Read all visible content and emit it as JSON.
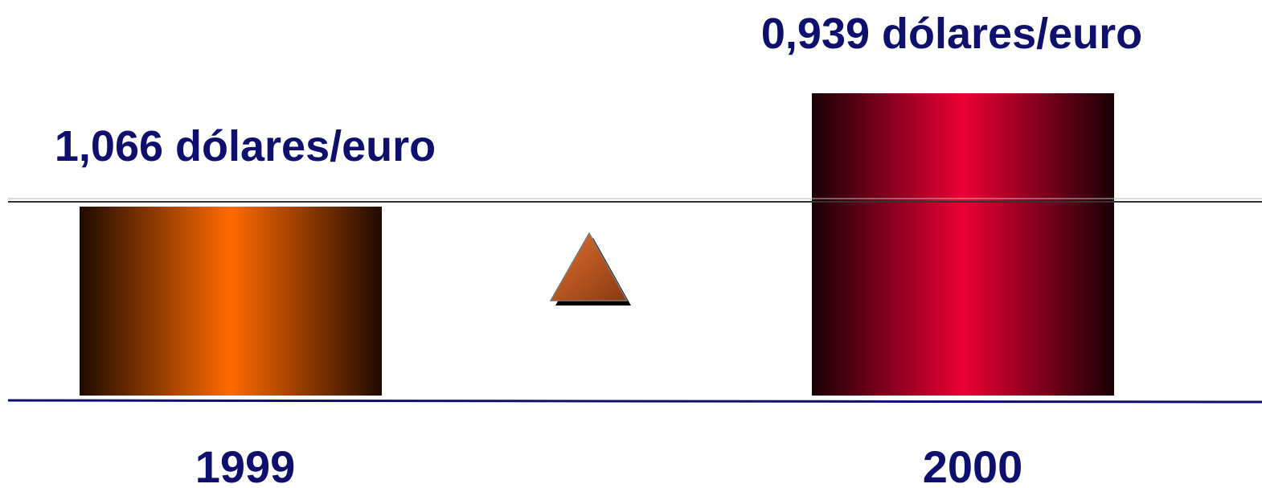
{
  "chart_data": {
    "type": "bar",
    "categories": [
      "1999",
      "2000"
    ],
    "values": [
      1.066,
      0.939
    ],
    "value_labels": [
      "1,066 dólares/euro",
      "0,939 dólares/euro"
    ],
    "unit": "dólares/euro",
    "note": "Apparent bar heights run opposite to the printed values; recreated as shown.",
    "colors": {
      "bar_1999": "#ff6a00",
      "bar_1999_edge": "#1f0a00",
      "bar_2000": "#ec0033",
      "bar_2000_edge": "#1a0006",
      "text": "#0f0f6e",
      "baseline": "#0f0f6e",
      "reference_line": "#333333",
      "triangle": "#b4501a"
    },
    "legend": "none",
    "grid": false,
    "decorations": [
      "triangle-icon"
    ]
  }
}
